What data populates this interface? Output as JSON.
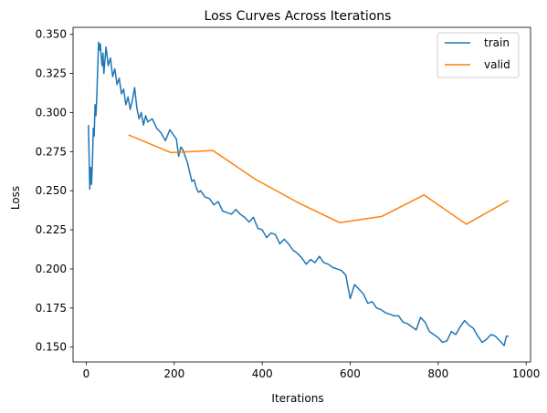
{
  "chart_data": {
    "type": "line",
    "title": "Loss Curves Across Iterations",
    "xlabel": "Iterations",
    "ylabel": "Loss",
    "xlim": [
      -30,
      1010
    ],
    "ylim": [
      0.1405,
      0.3545
    ],
    "xticks": [
      0,
      200,
      400,
      600,
      800,
      1000
    ],
    "xtick_labels": [
      "0",
      "200",
      "400",
      "600",
      "800",
      "1000"
    ],
    "yticks": [
      0.15,
      0.175,
      0.2,
      0.225,
      0.25,
      0.275,
      0.3,
      0.325,
      0.35
    ],
    "ytick_labels": [
      "0.150",
      "0.175",
      "0.200",
      "0.225",
      "0.250",
      "0.275",
      "0.300",
      "0.325",
      "0.350"
    ],
    "grid": false,
    "legend_position": "top-right",
    "series": [
      {
        "name": "train",
        "color": "#1f77b4",
        "x": [
          5,
          8,
          10,
          12,
          14,
          16,
          18,
          20,
          22,
          24,
          26,
          28,
          30,
          32,
          34,
          36,
          38,
          40,
          45,
          50,
          55,
          60,
          65,
          70,
          75,
          80,
          85,
          90,
          95,
          100,
          105,
          110,
          115,
          120,
          125,
          130,
          135,
          140,
          150,
          160,
          170,
          180,
          190,
          200,
          205,
          210,
          215,
          220,
          225,
          230,
          240,
          245,
          250,
          255,
          260,
          270,
          280,
          290,
          300,
          310,
          320,
          330,
          340,
          350,
          360,
          370,
          380,
          390,
          400,
          410,
          420,
          430,
          440,
          450,
          460,
          470,
          480,
          490,
          500,
          510,
          520,
          530,
          540,
          550,
          560,
          570,
          580,
          590,
          600,
          610,
          620,
          630,
          640,
          650,
          660,
          670,
          680,
          690,
          700,
          710,
          720,
          730,
          740,
          750,
          760,
          770,
          780,
          790,
          800,
          810,
          820,
          830,
          840,
          850,
          860,
          870,
          880,
          890,
          900,
          910,
          920,
          930,
          940,
          950,
          955,
          960
        ],
        "values": [
          0.292,
          0.251,
          0.265,
          0.254,
          0.268,
          0.29,
          0.285,
          0.305,
          0.298,
          0.31,
          0.328,
          0.345,
          0.34,
          0.344,
          0.336,
          0.33,
          0.338,
          0.325,
          0.342,
          0.33,
          0.335,
          0.323,
          0.328,
          0.318,
          0.322,
          0.312,
          0.315,
          0.305,
          0.31,
          0.302,
          0.308,
          0.316,
          0.303,
          0.296,
          0.3,
          0.292,
          0.298,
          0.294,
          0.296,
          0.29,
          0.287,
          0.282,
          0.289,
          0.285,
          0.283,
          0.272,
          0.278,
          0.276,
          0.272,
          0.268,
          0.256,
          0.257,
          0.252,
          0.249,
          0.25,
          0.246,
          0.245,
          0.241,
          0.243,
          0.237,
          0.236,
          0.235,
          0.238,
          0.235,
          0.233,
          0.23,
          0.233,
          0.226,
          0.225,
          0.22,
          0.223,
          0.222,
          0.216,
          0.219,
          0.216,
          0.212,
          0.21,
          0.207,
          0.203,
          0.206,
          0.204,
          0.208,
          0.204,
          0.203,
          0.201,
          0.2,
          0.199,
          0.196,
          0.181,
          0.19,
          0.187,
          0.184,
          0.178,
          0.179,
          0.175,
          0.174,
          0.172,
          0.171,
          0.17,
          0.17,
          0.166,
          0.165,
          0.163,
          0.161,
          0.169,
          0.166,
          0.16,
          0.158,
          0.156,
          0.153,
          0.154,
          0.16,
          0.158,
          0.163,
          0.167,
          0.164,
          0.162,
          0.157,
          0.153,
          0.155,
          0.158,
          0.157,
          0.154,
          0.151,
          0.157,
          0.157
        ]
      },
      {
        "name": "valid",
        "color": "#ff7f0e",
        "x": [
          96,
          192,
          288,
          384,
          480,
          576,
          672,
          768,
          864,
          960
        ],
        "values": [
          0.2857,
          0.2744,
          0.2757,
          0.2574,
          0.2426,
          0.2296,
          0.2336,
          0.2473,
          0.2286,
          0.2438
        ]
      }
    ]
  }
}
